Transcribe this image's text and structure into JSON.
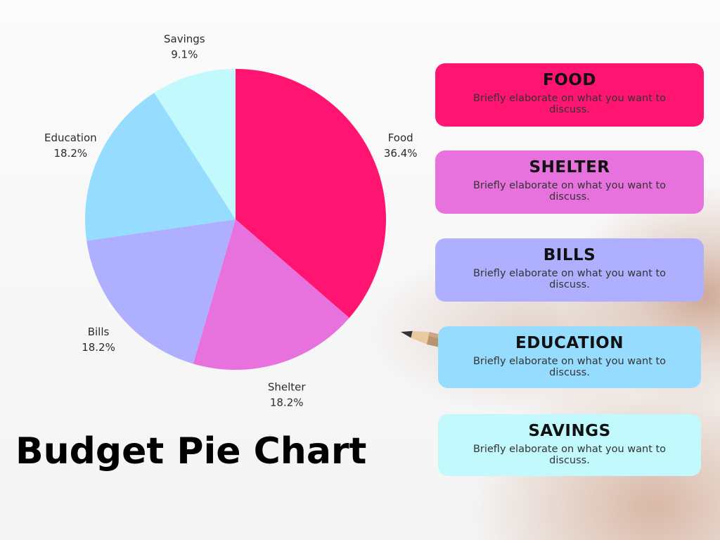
{
  "title": "Budget Pie Chart",
  "chart_data": {
    "type": "pie",
    "slices": [
      {
        "label": "Food",
        "percent_label": "36.4%",
        "value": 36.4,
        "color": "#ff1471"
      },
      {
        "label": "Shelter",
        "percent_label": "18.2%",
        "value": 18.2,
        "color": "#e872dd"
      },
      {
        "label": "Bills",
        "percent_label": "18.2%",
        "value": 18.2,
        "color": "#aeb0ff"
      },
      {
        "label": "Education",
        "percent_label": "18.2%",
        "value": 18.2,
        "color": "#96dcff"
      },
      {
        "label": "Savings",
        "percent_label": "9.1%",
        "value": 9.1,
        "color": "#c2f9fd"
      }
    ]
  },
  "cards": [
    {
      "heading": "FOOD",
      "text": "Briefly elaborate on what you want to discuss.",
      "color": "#ff1471"
    },
    {
      "heading": "SHELTER",
      "text": "Briefly elaborate on what you want to discuss.",
      "color": "#e872dd"
    },
    {
      "heading": "BILLS",
      "text": "Briefly elaborate on what you want to discuss.",
      "color": "#aeb0ff"
    },
    {
      "heading": "EDUCATION",
      "text": "Briefly elaborate on what you want to discuss.",
      "color": "#96dcff"
    },
    {
      "heading": "SAVINGS",
      "text": "Briefly elaborate on what you want to discuss.",
      "color": "#c2f9fd"
    }
  ]
}
